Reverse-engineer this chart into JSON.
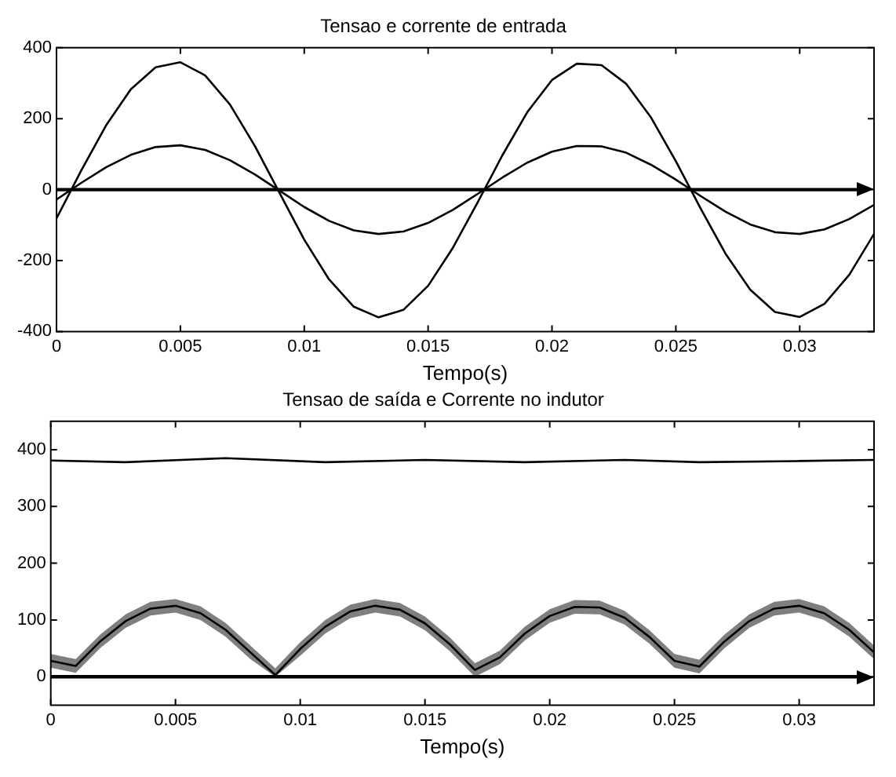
{
  "chart_data": [
    {
      "type": "line",
      "title": "Tensao e corrente de entrada",
      "xlabel": "Tempo(s)",
      "xlim": [
        0,
        0.033
      ],
      "xticks": [
        0,
        0.005,
        0.01,
        0.015,
        0.02,
        0.025,
        0.03
      ],
      "ylim": [
        -400,
        400
      ],
      "yticks": [
        -400,
        -200,
        0,
        200,
        400
      ],
      "grid": false,
      "legend": false,
      "marker": "none",
      "line_style": "solid",
      "x": [
        0,
        0.001,
        0.002,
        0.003,
        0.004,
        0.005,
        0.006,
        0.007,
        0.008,
        0.009,
        0.01,
        0.011,
        0.012,
        0.013,
        0.014,
        0.015,
        0.016,
        0.017,
        0.018,
        0.019,
        0.02,
        0.021,
        0.022,
        0.023,
        0.024,
        0.025,
        0.026,
        0.027,
        0.028,
        0.029,
        0.03,
        0.031,
        0.032,
        0.033
      ],
      "series": [
        {
          "color": "#000000",
          "values": [
            -81,
            54,
            181,
            283,
            345,
            359,
            322,
            240,
            124,
            -9,
            -141,
            -253,
            -330,
            -360,
            -339,
            -271,
            -164,
            -36,
            97,
            218,
            309,
            355,
            351,
            298,
            203,
            80,
            -53,
            -180,
            -282,
            -345,
            -359,
            -322,
            -240,
            -125
          ]
        },
        {
          "color": "#000000",
          "values": [
            -28,
            19,
            63,
            98,
            120,
            125,
            112,
            83,
            43,
            -3,
            -49,
            -88,
            -115,
            -125,
            -118,
            -94,
            -57,
            -12,
            34,
            76,
            107,
            123,
            122,
            104,
            70,
            28,
            -18,
            -62,
            -98,
            -120,
            -125,
            -112,
            -83,
            -43
          ]
        }
      ],
      "ref_lines": [
        {
          "axis": "y",
          "value": 0,
          "color": "#000000"
        }
      ]
    },
    {
      "type": "line",
      "title": "Tensao de saída e Corrente no indutor",
      "xlabel": "Tempo(s)",
      "xlim": [
        0,
        0.033
      ],
      "xticks": [
        0,
        0.005,
        0.01,
        0.015,
        0.02,
        0.025,
        0.03
      ],
      "ylim": [
        -50,
        450
      ],
      "yticks": [
        0,
        100,
        200,
        300,
        400
      ],
      "grid": false,
      "legend": false,
      "marker": "none",
      "line_style": "solid",
      "x": [
        0,
        0.001,
        0.002,
        0.003,
        0.004,
        0.005,
        0.006,
        0.007,
        0.008,
        0.009,
        0.01,
        0.011,
        0.012,
        0.013,
        0.014,
        0.015,
        0.016,
        0.017,
        0.018,
        0.019,
        0.02,
        0.021,
        0.022,
        0.023,
        0.024,
        0.025,
        0.026,
        0.027,
        0.028,
        0.029,
        0.03,
        0.031,
        0.032,
        0.033
      ],
      "series": [
        {
          "color": "#000000",
          "x": [
            0,
            0.003,
            0.007,
            0.011,
            0.015,
            0.019,
            0.023,
            0.026,
            0.03,
            0.033
          ],
          "values": [
            381,
            378,
            385,
            378,
            382,
            378,
            382,
            378,
            380,
            382
          ]
        },
        {
          "color": "#000000",
          "values": [
            28,
            19,
            63,
            98,
            120,
            125,
            112,
            83,
            43,
            3,
            49,
            88,
            115,
            125,
            118,
            94,
            57,
            12,
            34,
            76,
            107,
            123,
            122,
            104,
            70,
            28,
            18,
            62,
            98,
            120,
            125,
            112,
            83,
            43
          ],
          "lower": [
            16,
            7,
            51,
            86,
            108,
            113,
            100,
            71,
            31,
            0,
            37,
            76,
            103,
            113,
            106,
            82,
            45,
            0,
            22,
            64,
            95,
            111,
            110,
            92,
            58,
            16,
            6,
            50,
            86,
            108,
            113,
            100,
            71,
            31
          ],
          "upper": [
            40,
            31,
            75,
            110,
            132,
            137,
            124,
            95,
            55,
            15,
            61,
            100,
            127,
            137,
            130,
            106,
            69,
            24,
            46,
            88,
            119,
            135,
            134,
            116,
            82,
            40,
            30,
            74,
            110,
            132,
            137,
            124,
            95,
            55
          ]
        }
      ],
      "ref_lines": [
        {
          "axis": "y",
          "value": 0,
          "color": "#000000"
        }
      ]
    }
  ]
}
